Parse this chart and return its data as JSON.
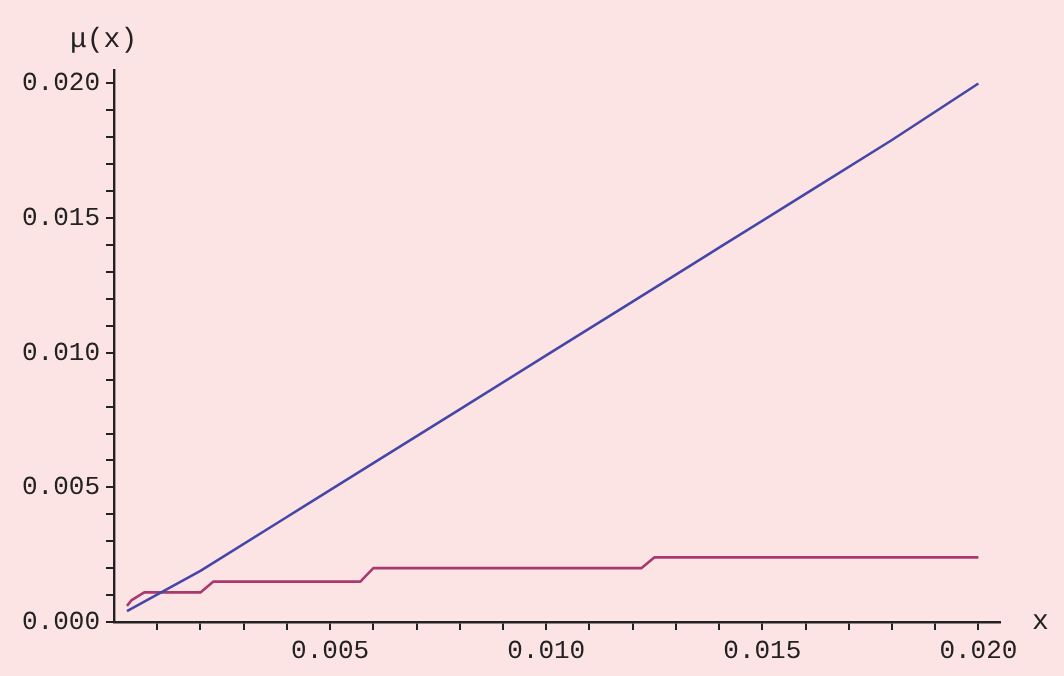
{
  "chart_data": {
    "type": "line",
    "xlabel": "x",
    "ylabel": "μ(x)",
    "grid": false,
    "legend": false,
    "marker": "none",
    "line_style": "solid",
    "xlim": [
      0,
      0.0205
    ],
    "ylim": [
      0,
      0.0205
    ],
    "xticks": [
      {
        "value": 0.001,
        "label": null
      },
      {
        "value": 0.002,
        "label": null
      },
      {
        "value": 0.003,
        "label": null
      },
      {
        "value": 0.004,
        "label": null
      },
      {
        "value": 0.005,
        "label": "0.005"
      },
      {
        "value": 0.006,
        "label": null
      },
      {
        "value": 0.007,
        "label": null
      },
      {
        "value": 0.008,
        "label": null
      },
      {
        "value": 0.009,
        "label": null
      },
      {
        "value": 0.01,
        "label": "0.010"
      },
      {
        "value": 0.011,
        "label": null
      },
      {
        "value": 0.012,
        "label": null
      },
      {
        "value": 0.013,
        "label": null
      },
      {
        "value": 0.014,
        "label": null
      },
      {
        "value": 0.015,
        "label": "0.015"
      },
      {
        "value": 0.016,
        "label": null
      },
      {
        "value": 0.017,
        "label": null
      },
      {
        "value": 0.018,
        "label": null
      },
      {
        "value": 0.019,
        "label": null
      },
      {
        "value": 0.02,
        "label": "0.020"
      }
    ],
    "yticks": [
      {
        "value": 0,
        "label": "0.000"
      },
      {
        "value": 0.001,
        "label": null
      },
      {
        "value": 0.002,
        "label": null
      },
      {
        "value": 0.003,
        "label": null
      },
      {
        "value": 0.004,
        "label": null
      },
      {
        "value": 0.005,
        "label": "0.005"
      },
      {
        "value": 0.006,
        "label": null
      },
      {
        "value": 0.007,
        "label": null
      },
      {
        "value": 0.008,
        "label": null
      },
      {
        "value": 0.009,
        "label": null
      },
      {
        "value": 0.01,
        "label": "0.010"
      },
      {
        "value": 0.011,
        "label": null
      },
      {
        "value": 0.012,
        "label": null
      },
      {
        "value": 0.013,
        "label": null
      },
      {
        "value": 0.014,
        "label": null
      },
      {
        "value": 0.015,
        "label": "0.015"
      },
      {
        "value": 0.016,
        "label": null
      },
      {
        "value": 0.017,
        "label": null
      },
      {
        "value": 0.018,
        "label": null
      },
      {
        "value": 0.019,
        "label": null
      },
      {
        "value": 0.02,
        "label": "0.020"
      }
    ],
    "series": [
      {
        "color": "#4646a8",
        "x": [
          0.0003,
          0.002,
          0.004,
          0.006,
          0.008,
          0.01,
          0.012,
          0.014,
          0.016,
          0.018,
          0.02
        ],
        "values": [
          0.0004,
          0.0019,
          0.0039,
          0.0059,
          0.0079,
          0.0099,
          0.0119,
          0.0139,
          0.0159,
          0.0179,
          0.02
        ]
      },
      {
        "color": "#a8386e",
        "x": [
          0.0003,
          0.0004,
          0.0007,
          0.002,
          0.0023,
          0.0057,
          0.006,
          0.0122,
          0.0125,
          0.02
        ],
        "values": [
          0.0006,
          0.0008,
          0.0011,
          0.0011,
          0.0015,
          0.0015,
          0.002,
          0.002,
          0.0024,
          0.0024
        ]
      }
    ]
  }
}
